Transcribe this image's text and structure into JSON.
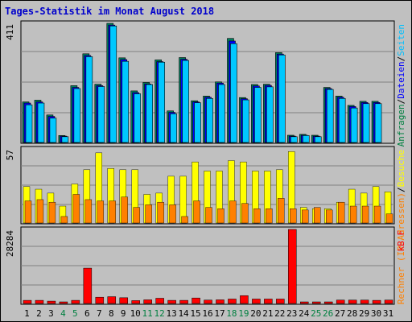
{
  "chart_data": [
    {
      "type": "bar",
      "title": "Tages-Statistik im Monat August 2018",
      "ymax_label": "411",
      "y_axis_label_parts": [
        {
          "text": "Anfragen",
          "color": "#008040"
        },
        {
          "text": "/",
          "color": "#000000"
        },
        {
          "text": "Dateien",
          "color": "#0000ff"
        },
        {
          "text": "/",
          "color": "#000000"
        },
        {
          "text": "Seiten",
          "color": "#00c0ff"
        }
      ],
      "ylim": [
        0,
        411
      ],
      "x": [
        "1",
        "2",
        "3",
        "4",
        "5",
        "6",
        "7",
        "8",
        "9",
        "10",
        "11",
        "12",
        "13",
        "14",
        "15",
        "16",
        "17",
        "18",
        "19",
        "20",
        "21",
        "22",
        "23",
        "24",
        "25",
        "26",
        "27",
        "28",
        "29",
        "30",
        "31"
      ],
      "series": [
        {
          "name": "Anfragen",
          "color": "#008060",
          "values": [
            140,
            146,
            95,
            24,
            196,
            306,
            201,
            411,
            292,
            178,
            207,
            285,
            109,
            293,
            144,
            160,
            209,
            359,
            155,
            200,
            201,
            310,
            25,
            28,
            25,
            190,
            160,
            128,
            142,
            142,
            0
          ]
        },
        {
          "name": "Dateien",
          "color": "#0000ff",
          "values": [
            136,
            140,
            90,
            22,
            190,
            300,
            196,
            405,
            286,
            172,
            202,
            279,
            104,
            287,
            140,
            156,
            205,
            350,
            151,
            195,
            197,
            305,
            22,
            25,
            22,
            186,
            156,
            124,
            138,
            138,
            0
          ]
        },
        {
          "name": "Seiten",
          "color": "#00c8ff",
          "values": [
            130,
            136,
            84,
            20,
            186,
            296,
            193,
            402,
            280,
            168,
            200,
            277,
            99,
            283,
            137,
            152,
            200,
            341,
            147,
            190,
            192,
            302,
            20,
            24,
            20,
            183,
            152,
            119,
            134,
            134,
            0
          ]
        }
      ]
    },
    {
      "type": "bar",
      "ymax_label": "57",
      "y_axis_label_parts": [
        {
          "text": "Rechner (IP-Adressen)",
          "color": "#ff8000"
        },
        {
          "text": "/",
          "color": "#000000"
        },
        {
          "text": "Besuche",
          "color": "#ffff00"
        }
      ],
      "ylim": [
        0,
        57
      ],
      "x": [
        "1",
        "2",
        "3",
        "4",
        "5",
        "6",
        "7",
        "8",
        "9",
        "10",
        "11",
        "12",
        "13",
        "14",
        "15",
        "16",
        "17",
        "18",
        "19",
        "20",
        "21",
        "22",
        "23",
        "24",
        "25",
        "26",
        "27",
        "28",
        "29",
        "30",
        "31"
      ],
      "series": [
        {
          "name": "Besuche",
          "color": "#ffff00",
          "values": [
            28,
            26,
            23,
            13,
            30,
            41,
            54,
            42,
            41,
            41,
            22,
            23,
            36,
            36,
            47,
            40,
            40,
            48,
            47,
            40,
            40,
            41,
            55,
            12,
            11,
            11,
            16,
            26,
            23,
            28,
            24
          ]
        },
        {
          "name": "Rechner (IP-Adressen)",
          "color": "#ff8000",
          "values": [
            17,
            18,
            16,
            5,
            22,
            18,
            17,
            17,
            20,
            12,
            14,
            16,
            14,
            5,
            17,
            12,
            11,
            17,
            15,
            11,
            11,
            19,
            11,
            10,
            12,
            10,
            16,
            13,
            13,
            13,
            7
          ]
        }
      ]
    },
    {
      "type": "bar",
      "ymax_label": "28284",
      "y_axis_label_parts": [
        {
          "text": "kB F",
          "color": "#ff0000"
        }
      ],
      "ylim": [
        0,
        28284
      ],
      "x": [
        "1",
        "2",
        "3",
        "4",
        "5",
        "6",
        "7",
        "8",
        "9",
        "10",
        "11",
        "12",
        "13",
        "14",
        "15",
        "16",
        "17",
        "18",
        "19",
        "20",
        "21",
        "22",
        "23",
        "24",
        "25",
        "26",
        "27",
        "28",
        "29",
        "30",
        "31"
      ],
      "series": [
        {
          "name": "kB F",
          "color": "#ff0000",
          "values": [
            1200,
            1200,
            900,
            600,
            1200,
            13500,
            2400,
            2600,
            2200,
            1100,
            1400,
            2000,
            1200,
            1200,
            2100,
            1300,
            1400,
            1700,
            3000,
            1700,
            1700,
            1700,
            28284,
            500,
            500,
            500,
            1300,
            1300,
            1300,
            1200,
            1300
          ]
        }
      ]
    }
  ],
  "x_label_colors": [
    "#000000",
    "#000000",
    "#000000",
    "#008040",
    "#008040",
    "#000000",
    "#000000",
    "#000000",
    "#000000",
    "#000000",
    "#008040",
    "#008040",
    "#000000",
    "#000000",
    "#000000",
    "#000000",
    "#000000",
    "#008040",
    "#008040",
    "#000000",
    "#000000",
    "#000000",
    "#000000",
    "#000000",
    "#008040",
    "#008040",
    "#000000",
    "#000000",
    "#000000",
    "#000000",
    "#000000"
  ]
}
